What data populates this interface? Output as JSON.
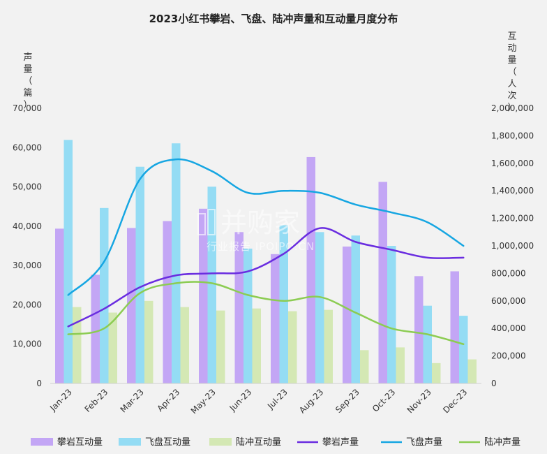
{
  "chart_data": {
    "type": "bar",
    "title": "2023小红书攀岩、飞盘、陆冲声量和互动量月度分布",
    "ylabel_left": "声量（篇）",
    "ylabel_right": "互动量（人次）",
    "categories": [
      "Jan-23",
      "Feb-23",
      "Mar-23",
      "Apr-23",
      "May-23",
      "Jun-23",
      "Jul-23",
      "Aug-23",
      "Sep-23",
      "Oct-23",
      "Nov-23",
      "Dec-23"
    ],
    "left_axis": {
      "ylim": [
        0,
        70000
      ],
      "ticks": [
        "0",
        "10,000",
        "20,000",
        "30,000",
        "40,000",
        "50,000",
        "60,000",
        "70,000"
      ]
    },
    "right_axis": {
      "ylim": [
        0,
        2000000
      ],
      "ticks": [
        "0",
        "200,000",
        "400,000",
        "600,000",
        "800,000",
        "1,000,000",
        "1,200,000",
        "1,400,000",
        "1,600,000",
        "1,800,000",
        "2,000,000"
      ]
    },
    "bar_series": [
      {
        "name": "攀岩互动量",
        "axis": "right",
        "color": "#c3a6f5",
        "values": [
          1125000,
          790000,
          1130000,
          1180000,
          1270000,
          1100000,
          940000,
          1645000,
          995000,
          1465000,
          780000,
          815000
        ]
      },
      {
        "name": "飞盘互动量",
        "axis": "right",
        "color": "#94dcf4",
        "values": [
          1770000,
          1275000,
          1575000,
          1745000,
          1430000,
          980000,
          1150000,
          1100000,
          1075000,
          1000000,
          565000,
          492000
        ]
      },
      {
        "name": "陆冲互动量",
        "axis": "right",
        "color": "#d4e8b4",
        "values": [
          555000,
          515000,
          600000,
          555000,
          530000,
          545000,
          525000,
          535000,
          242000,
          262000,
          148000,
          175000
        ]
      }
    ],
    "line_series": [
      {
        "name": "攀岩声量",
        "axis": "left",
        "color": "#6a2de0",
        "values": [
          14500,
          19000,
          24500,
          27500,
          28000,
          28500,
          33000,
          39500,
          36000,
          34000,
          32000,
          32000
        ]
      },
      {
        "name": "飞盘声量",
        "axis": "left",
        "color": "#16a6e2",
        "values": [
          22500,
          31000,
          52000,
          57000,
          54000,
          48500,
          49000,
          48500,
          45500,
          43500,
          41000,
          35000
        ]
      },
      {
        "name": "陆冲声量",
        "axis": "left",
        "color": "#8ccc52",
        "values": [
          12500,
          14000,
          23000,
          25500,
          25500,
          22500,
          21000,
          22000,
          18000,
          14000,
          12500,
          10000
        ]
      }
    ],
    "legend_position": "bottom",
    "grid": false
  },
  "watermark": {
    "line1": "并购家",
    "line2": "行业报告 IPOIPO.CN"
  }
}
